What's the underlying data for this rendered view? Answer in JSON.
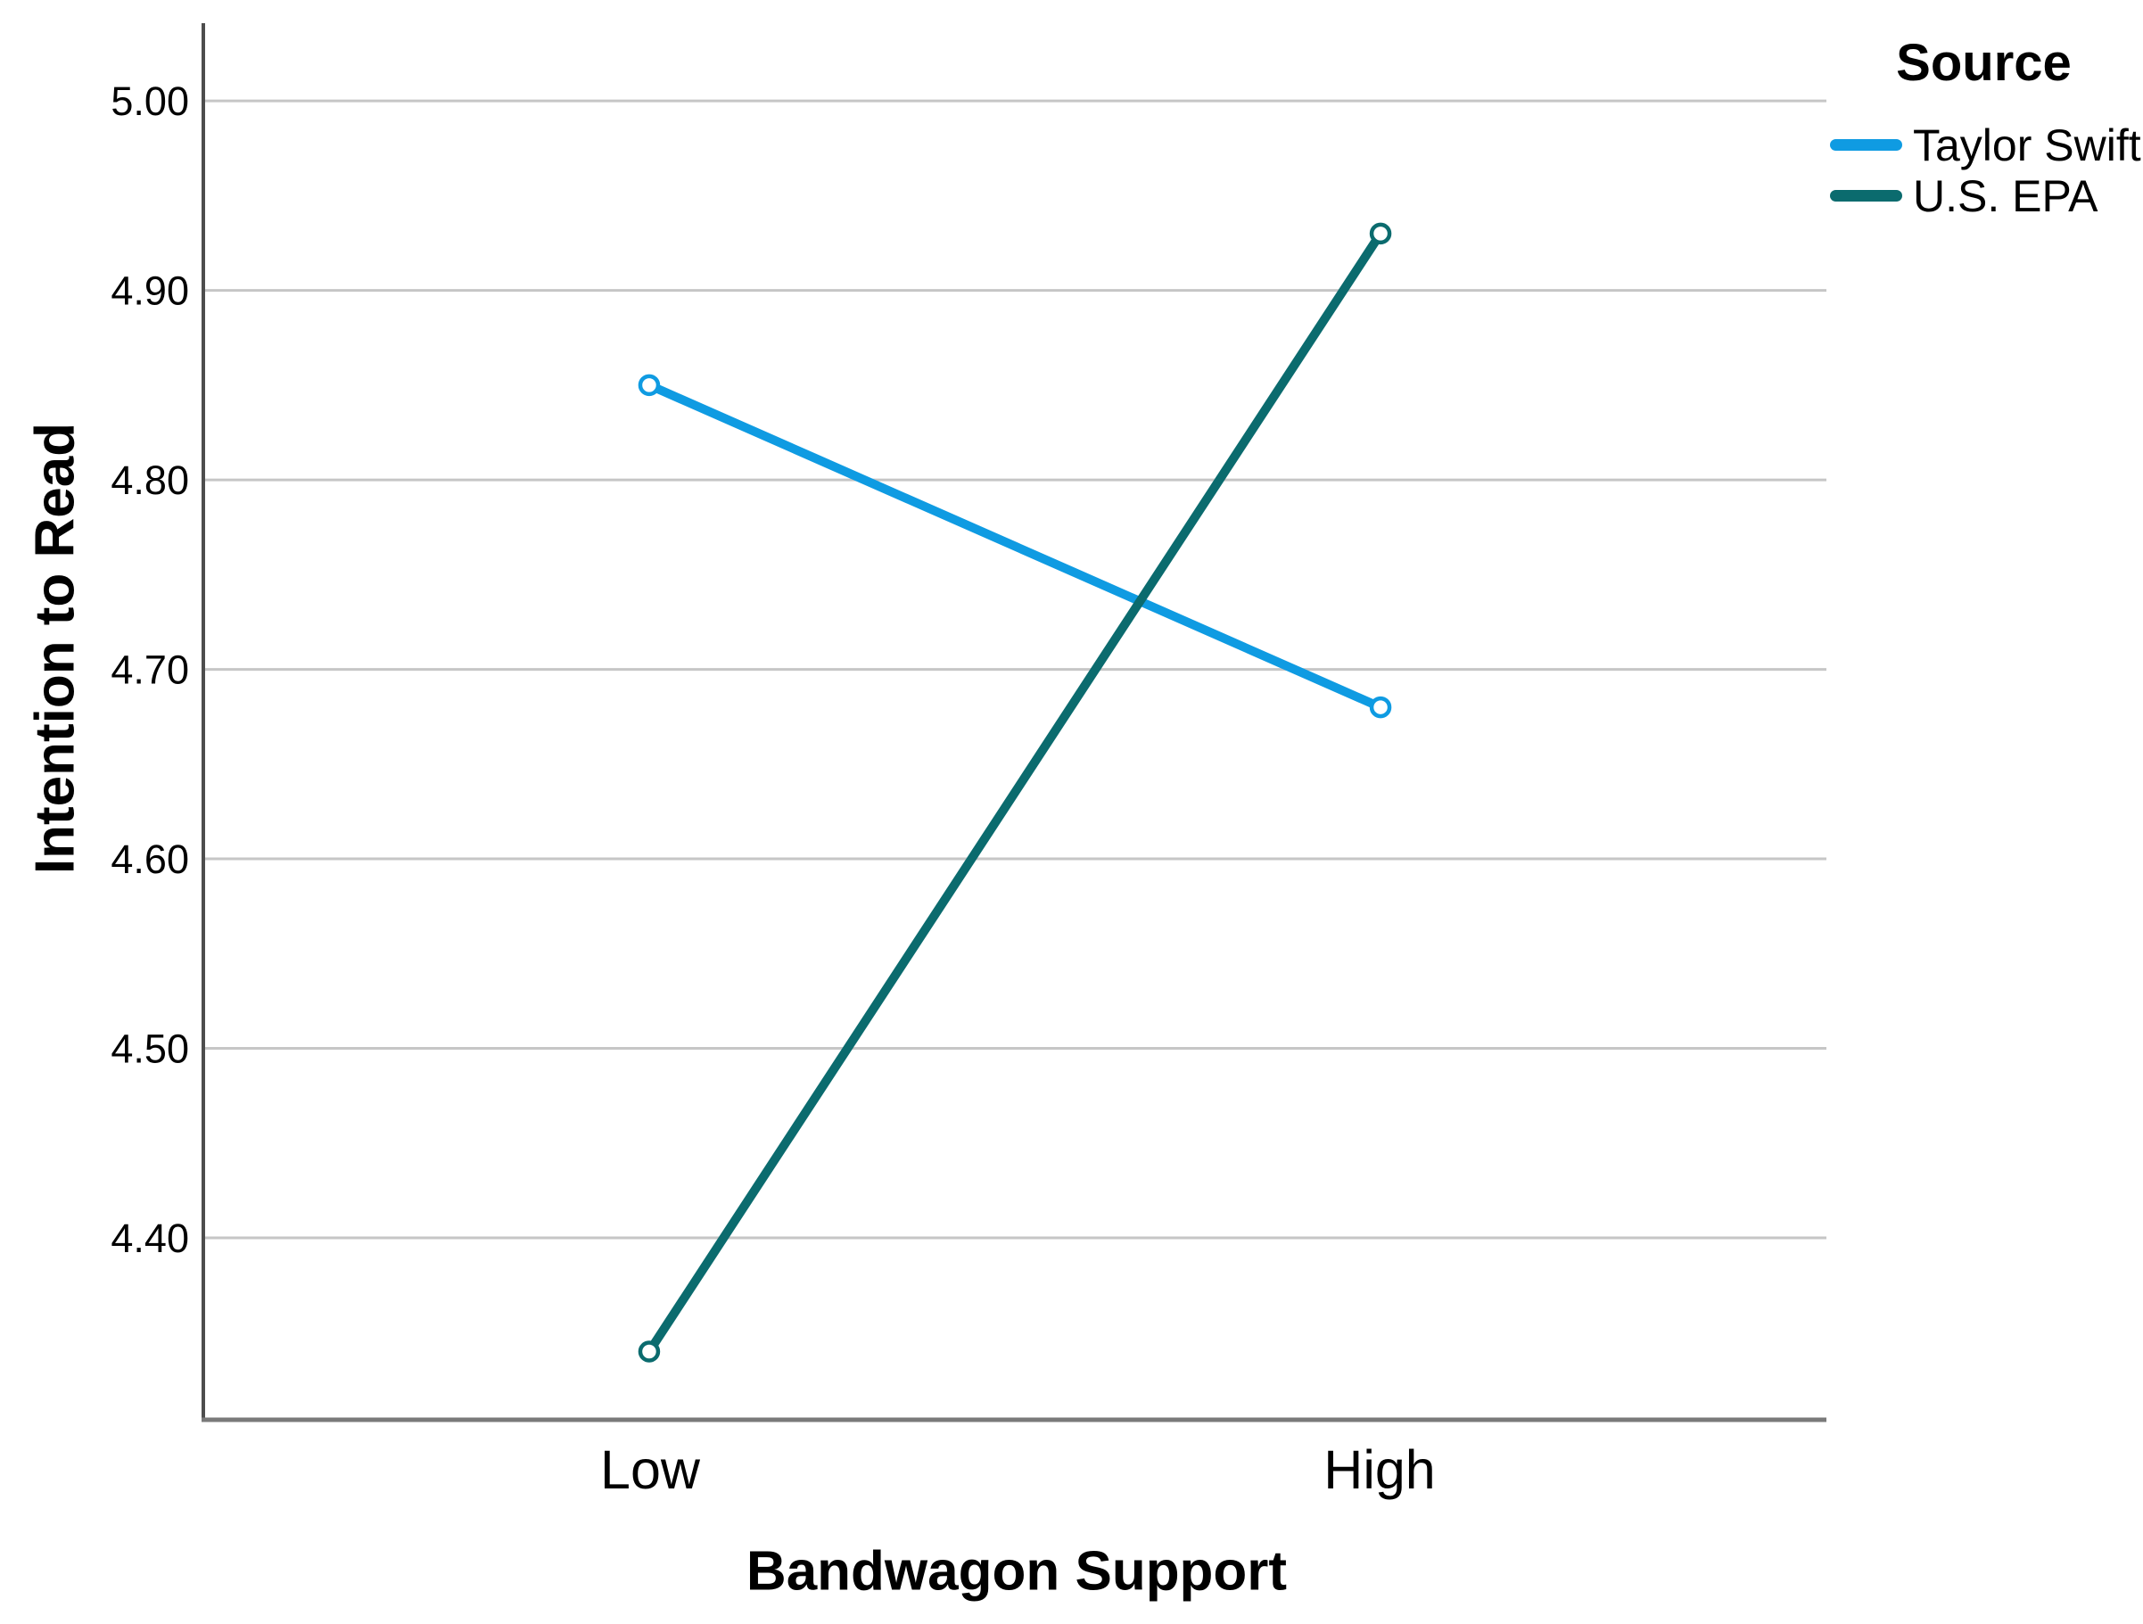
{
  "chart_data": {
    "type": "line",
    "title": "",
    "xlabel": "Bandwagon Support",
    "ylabel": "Intention to Read",
    "categories": [
      "Low",
      "High"
    ],
    "series": [
      {
        "name": "Taylor Swift",
        "color": "#0f9be2",
        "values": [
          4.85,
          4.68
        ]
      },
      {
        "name": "U.S. EPA",
        "color": "#0b6b6e",
        "values": [
          4.34,
          4.93
        ]
      }
    ],
    "ytick_labels": [
      "5.00",
      "4.90",
      "4.80",
      "4.70",
      "4.60",
      "4.50",
      "4.40"
    ],
    "yticks": [
      5.0,
      4.9,
      4.8,
      4.7,
      4.6,
      4.5,
      4.4
    ],
    "ylim": [
      4.304,
      5.041
    ],
    "grid": "horizontal",
    "marker": "open-circle",
    "legend_title": "Source",
    "legend_position": "top-right"
  },
  "colors": {
    "background": "#ffffff",
    "gridline": "#c6c6c6",
    "y_axis_line": "#4d4d4d",
    "x_axis_line": "#7a7a7a",
    "text": "#000000",
    "marker_fill": "#ffffff"
  }
}
